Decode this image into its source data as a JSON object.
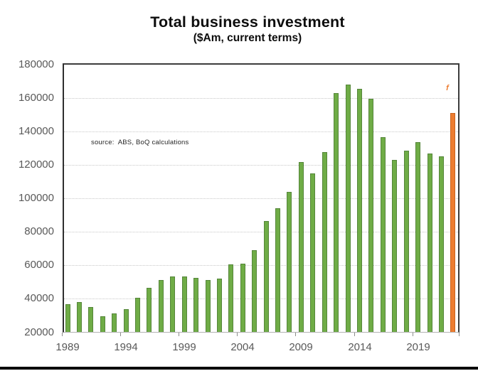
{
  "chart": {
    "title": "Total business investment",
    "subtitle": "($Am, current terms)",
    "source_note": "source:  ABS, BoQ calculations",
    "forecast_marker": "f"
  },
  "chart_data": {
    "type": "bar",
    "title": "Total business investment",
    "subtitle": "($Am, current terms)",
    "xlabel": "",
    "ylabel": "$Am, current terms",
    "categories": [
      "1989",
      "1990",
      "1991",
      "1992",
      "1993",
      "1994",
      "1995",
      "1996",
      "1997",
      "1998",
      "1999",
      "2000",
      "2001",
      "2002",
      "2003",
      "2004",
      "2005",
      "2006",
      "2007",
      "2008",
      "2009",
      "2010",
      "2011",
      "2012",
      "2013",
      "2014",
      "2015",
      "2016",
      "2017",
      "2018",
      "2019",
      "2020",
      "2021",
      "2022"
    ],
    "values": [
      36500,
      38000,
      35000,
      29500,
      31000,
      33500,
      40500,
      46500,
      51000,
      53000,
      53000,
      52500,
      51000,
      52000,
      60500,
      61000,
      69000,
      86500,
      94000,
      104000,
      121500,
      115000,
      127500,
      163000,
      168000,
      165500,
      159500,
      136500,
      123000,
      128500,
      133500,
      127000,
      125000,
      151000
    ],
    "series_name": "Total business investment",
    "forecast_category": "2022",
    "forecast_label": "f",
    "ylim": [
      20000,
      180000
    ],
    "ytick_interval": 20000,
    "yticks": [
      20000,
      40000,
      60000,
      80000,
      100000,
      120000,
      140000,
      160000,
      180000
    ],
    "xtick_labels": [
      "1989",
      "1994",
      "1999",
      "2004",
      "2009",
      "2014",
      "2019"
    ],
    "grid": true,
    "legend": "none",
    "bar_color": "#6FAC46",
    "bar_border": "#55863A",
    "forecast_bar_color": "#ED7D31",
    "forecast_bar_border": "#C96420"
  }
}
